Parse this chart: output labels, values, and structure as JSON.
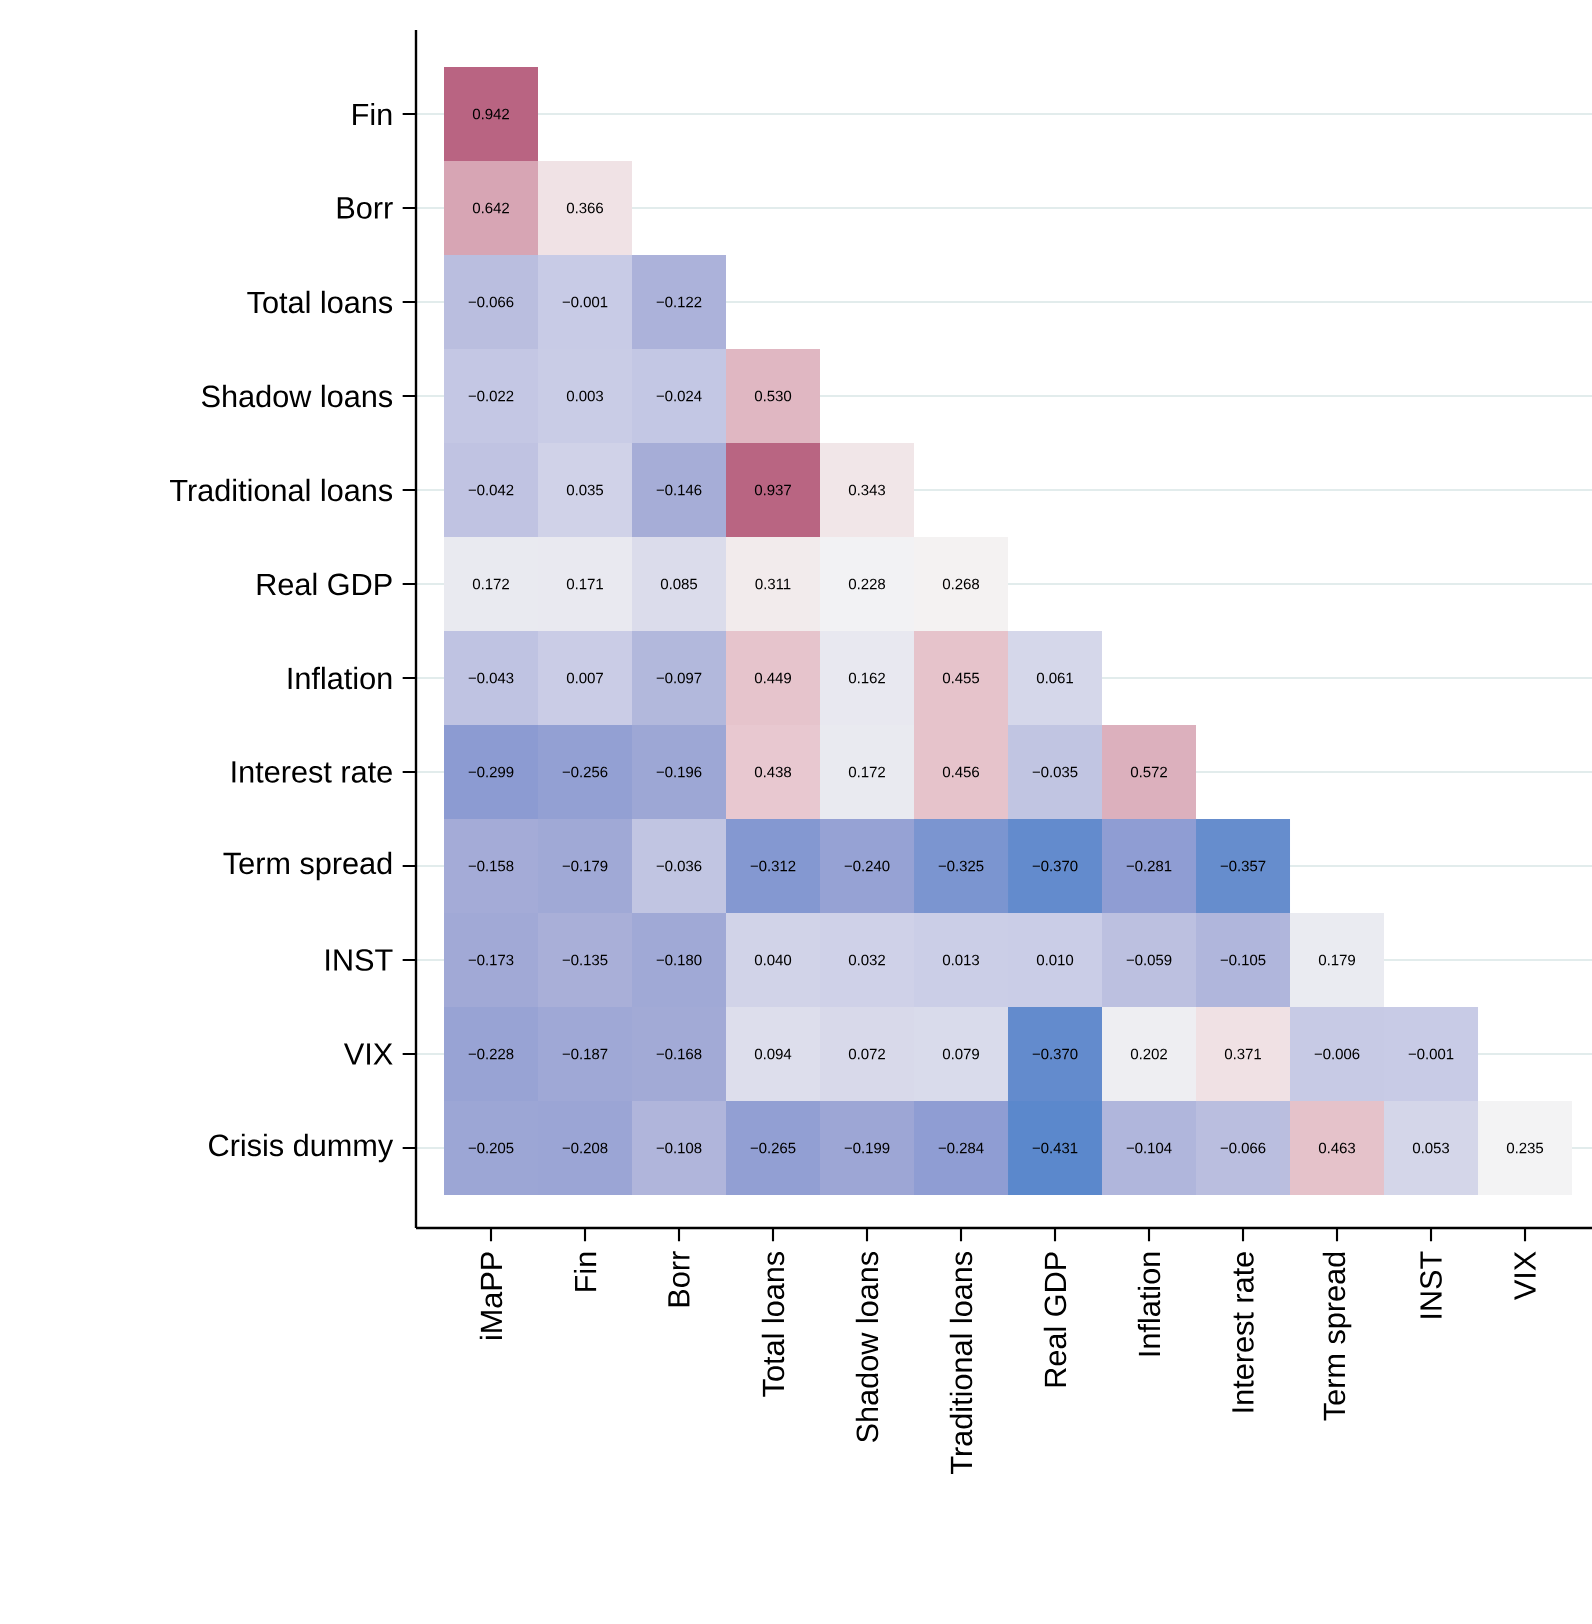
{
  "chart_data": {
    "type": "heatmap",
    "grid": "y",
    "categories": [
      "iMaPP",
      "Fin",
      "Borr",
      "Total loans",
      "Shadow loans",
      "Traditional loans",
      "Real GDP",
      "Inflation",
      "Interest rate",
      "Term spread",
      "INST",
      "VIX"
    ],
    "y_categories": [
      "Fin",
      "Borr",
      "Total loans",
      "Shadow loans",
      "Traditional loans",
      "Real GDP",
      "Inflation",
      "Interest rate",
      "Term spread",
      "INST",
      "VIX",
      "Crisis dummy"
    ],
    "cells": [
      [
        0.942,
        null,
        null,
        null,
        null,
        null,
        null,
        null,
        null,
        null,
        null,
        null
      ],
      [
        0.642,
        0.366,
        null,
        null,
        null,
        null,
        null,
        null,
        null,
        null,
        null,
        null
      ],
      [
        -0.066,
        -0.001,
        -0.122,
        null,
        null,
        null,
        null,
        null,
        null,
        null,
        null,
        null
      ],
      [
        -0.022,
        0.003,
        -0.024,
        0.53,
        null,
        null,
        null,
        null,
        null,
        null,
        null,
        null
      ],
      [
        -0.042,
        0.035,
        -0.146,
        0.937,
        0.343,
        null,
        null,
        null,
        null,
        null,
        null,
        null
      ],
      [
        0.172,
        0.171,
        0.085,
        0.311,
        0.228,
        0.268,
        null,
        null,
        null,
        null,
        null,
        null
      ],
      [
        -0.043,
        0.007,
        -0.097,
        0.449,
        0.162,
        0.455,
        0.061,
        null,
        null,
        null,
        null,
        null
      ],
      [
        -0.299,
        -0.256,
        -0.196,
        0.438,
        0.172,
        0.456,
        -0.035,
        0.572,
        null,
        null,
        null,
        null
      ],
      [
        -0.158,
        -0.179,
        -0.036,
        -0.312,
        -0.24,
        -0.325,
        -0.37,
        -0.281,
        -0.357,
        null,
        null,
        null
      ],
      [
        -0.173,
        -0.135,
        -0.18,
        0.04,
        0.032,
        0.013,
        0.01,
        -0.059,
        -0.105,
        0.179,
        null,
        null
      ],
      [
        -0.228,
        -0.187,
        -0.168,
        0.094,
        0.072,
        0.079,
        -0.37,
        0.202,
        0.371,
        -0.006,
        -0.001,
        null
      ],
      [
        -0.205,
        -0.208,
        -0.108,
        -0.265,
        -0.199,
        -0.284,
        -0.431,
        -0.104,
        -0.066,
        0.463,
        0.053,
        0.235
      ]
    ],
    "cell_labels": [
      [
        "0.942",
        null,
        null,
        null,
        null,
        null,
        null,
        null,
        null,
        null,
        null,
        null
      ],
      [
        "0.642",
        "0.366",
        null,
        null,
        null,
        null,
        null,
        null,
        null,
        null,
        null,
        null
      ],
      [
        "−0.066",
        "−0.001",
        "−0.122",
        null,
        null,
        null,
        null,
        null,
        null,
        null,
        null,
        null
      ],
      [
        "−0.022",
        "0.003",
        "−0.024",
        "0.530",
        null,
        null,
        null,
        null,
        null,
        null,
        null,
        null
      ],
      [
        "−0.042",
        "0.035",
        "−0.146",
        "0.937",
        "0.343",
        null,
        null,
        null,
        null,
        null,
        null,
        null
      ],
      [
        "0.172",
        "0.171",
        "0.085",
        "0.311",
        "0.228",
        "0.268",
        null,
        null,
        null,
        null,
        null,
        null
      ],
      [
        "−0.043",
        "0.007",
        "−0.097",
        "0.449",
        "0.162",
        "0.455",
        "0.061",
        null,
        null,
        null,
        null,
        null
      ],
      [
        "−0.299",
        "−0.256",
        "−0.196",
        "0.438",
        "0.172",
        "0.456",
        "−0.035",
        "0.572",
        null,
        null,
        null,
        null
      ],
      [
        "−0.158",
        "−0.179",
        "−0.036",
        "−0.312",
        "−0.240",
        "−0.325",
        "−0.370",
        "−0.281",
        "−0.357",
        null,
        null,
        null
      ],
      [
        "−0.173",
        "−0.135",
        "−0.180",
        "0.040",
        "0.032",
        "0.013",
        "0.010",
        "−0.059",
        "−0.105",
        "0.179",
        null,
        null
      ],
      [
        "−0.228",
        "−0.187",
        "−0.168",
        "0.094",
        "0.072",
        "0.079",
        "−0.370",
        "0.202",
        "0.371",
        "−0.006",
        "−0.001",
        null
      ],
      [
        "−0.205",
        "−0.208",
        "−0.108",
        "−0.265",
        "−0.199",
        "−0.284",
        "−0.431",
        "−0.104",
        "−0.066",
        "0.463",
        "0.053",
        "0.235"
      ]
    ]
  }
}
